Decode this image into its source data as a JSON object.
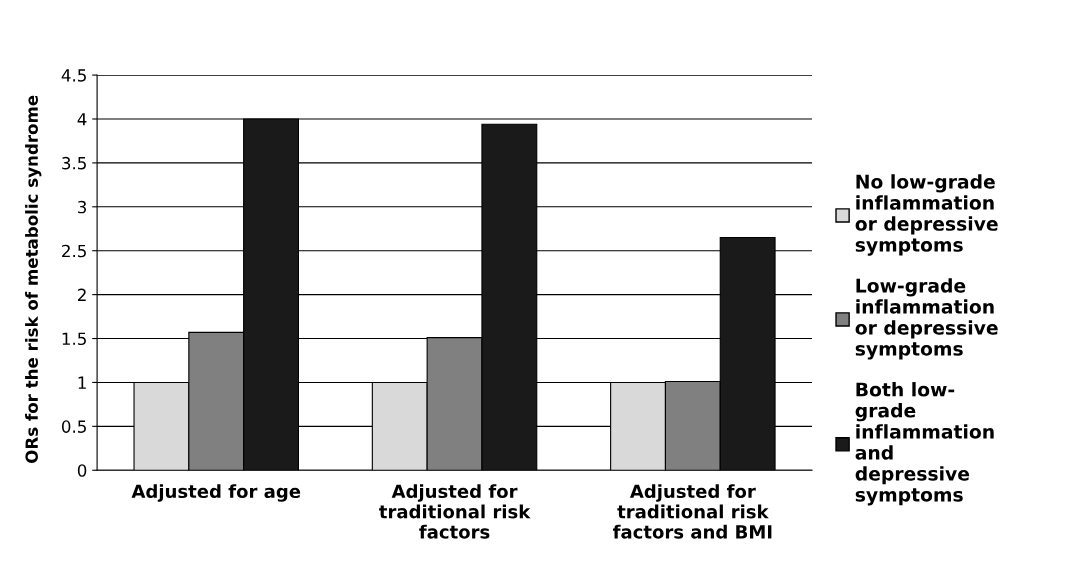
{
  "chart_data": {
    "type": "bar",
    "ylabel": "ORs for the risk of metabolic syndrome",
    "categories": [
      "Adjusted for age",
      "Adjusted for\ntraditional risk\nfactors",
      "Adjusted for\ntraditional risk\nfactors and BMI"
    ],
    "series": [
      {
        "name": "No low-grade\ninflammation\nor depressive\nsymptoms",
        "color": "#d9d9d9",
        "values": [
          1.0,
          1.0,
          1.0
        ]
      },
      {
        "name": "Low-grade\ninflammation\nor depressive\nsymptoms",
        "color": "#808080",
        "values": [
          1.57,
          1.51,
          1.01
        ]
      },
      {
        "name": "Both low-\ngrade\ninflammation\nand\ndepressive\nsymptoms",
        "color": "#1a1a1a",
        "values": [
          4.0,
          3.94,
          2.65
        ]
      }
    ],
    "ylim": [
      0,
      4.5
    ],
    "yticks": [
      0,
      0.5,
      1,
      1.5,
      2,
      2.5,
      3,
      3.5,
      4,
      4.5
    ],
    "grid": "y",
    "legend": "right"
  }
}
